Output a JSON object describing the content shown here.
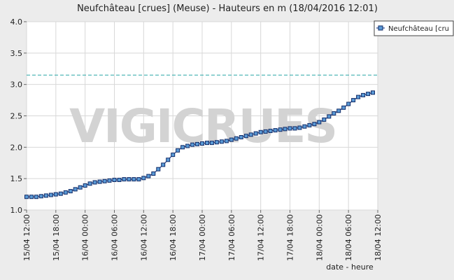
{
  "chart_data": {
    "type": "line",
    "title": "Neufchâteau [crues] (Meuse) - Hauteurs en m (18/04/2016 12:01)",
    "xlabel": "date - heure",
    "ylabel": "",
    "watermark": "VIGICRUES",
    "x_tick_labels": [
      "15/04 12:00",
      "15/04 18:00",
      "16/04 00:00",
      "16/04 06:00",
      "16/04 12:00",
      "16/04 18:00",
      "17/04 00:00",
      "17/04 06:00",
      "17/04 12:00",
      "17/04 18:00",
      "18/04 00:00",
      "18/04 06:00",
      "18/04 12:00"
    ],
    "x_range_hours": [
      0,
      72
    ],
    "y_ticks": [
      "1.0",
      "1.5",
      "2.0",
      "2.5",
      "3.0",
      "3.5",
      "4.0"
    ],
    "ylim": [
      1.0,
      4.0
    ],
    "grid": true,
    "reference_line": {
      "value": 3.15,
      "color": "#2aa7a7",
      "style": "dashed"
    },
    "legend": {
      "position": "top-right",
      "label": "Neufchâteau [cru"
    },
    "series": [
      {
        "name": "Neufchâteau [cru",
        "color": "#1e3f8c",
        "x_hours": [
          0,
          1,
          2,
          3,
          4,
          5,
          6,
          7,
          8,
          9,
          10,
          11,
          12,
          13,
          14,
          15,
          16,
          17,
          18,
          19,
          20,
          21,
          22,
          23,
          24,
          25,
          26,
          27,
          28,
          29,
          30,
          31,
          32,
          33,
          34,
          35,
          36,
          37,
          38,
          39,
          40,
          41,
          42,
          43,
          44,
          45,
          46,
          47,
          48,
          49,
          50,
          51,
          52,
          53,
          54,
          55,
          56,
          57,
          58,
          59,
          60,
          61,
          62,
          63,
          64,
          65,
          66,
          67,
          68,
          69,
          70,
          71
        ],
        "values": [
          1.21,
          1.21,
          1.21,
          1.22,
          1.23,
          1.24,
          1.25,
          1.26,
          1.28,
          1.3,
          1.33,
          1.36,
          1.39,
          1.42,
          1.44,
          1.45,
          1.46,
          1.47,
          1.48,
          1.48,
          1.49,
          1.49,
          1.49,
          1.49,
          1.51,
          1.54,
          1.58,
          1.65,
          1.72,
          1.8,
          1.88,
          1.95,
          2.0,
          2.02,
          2.04,
          2.05,
          2.06,
          2.07,
          2.07,
          2.08,
          2.09,
          2.1,
          2.12,
          2.14,
          2.16,
          2.18,
          2.2,
          2.22,
          2.24,
          2.25,
          2.26,
          2.27,
          2.28,
          2.29,
          2.3,
          2.3,
          2.31,
          2.33,
          2.35,
          2.37,
          2.4,
          2.44,
          2.49,
          2.54,
          2.58,
          2.63,
          2.69,
          2.75,
          2.8,
          2.83,
          2.85,
          2.87
        ]
      }
    ]
  }
}
